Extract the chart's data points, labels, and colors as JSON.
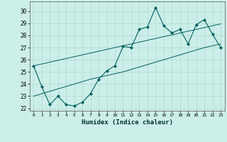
{
  "xlabel": "Humidex (Indice chaleur)",
  "bg_color": "#cceee8",
  "line_color": "#006060",
  "grid_color": "#b0d8d0",
  "x": [
    0,
    1,
    2,
    3,
    4,
    5,
    6,
    7,
    8,
    9,
    10,
    11,
    12,
    13,
    14,
    15,
    16,
    17,
    18,
    19,
    20,
    21,
    22,
    23
  ],
  "y_main": [
    25.5,
    23.8,
    22.3,
    23.0,
    22.3,
    22.2,
    22.5,
    23.2,
    24.4,
    25.1,
    25.5,
    27.1,
    27.0,
    28.5,
    28.7,
    30.3,
    28.8,
    28.2,
    28.5,
    27.3,
    28.9,
    29.3,
    28.1,
    27.0
  ],
  "y_trend1": [
    23.0,
    23.2,
    23.4,
    23.6,
    23.8,
    24.0,
    24.2,
    24.4,
    24.55,
    24.7,
    24.85,
    25.0,
    25.2,
    25.4,
    25.6,
    25.8,
    26.0,
    26.2,
    26.4,
    26.6,
    26.8,
    27.0,
    27.15,
    27.3
  ],
  "y_trend2": [
    25.5,
    25.65,
    25.8,
    25.95,
    26.1,
    26.25,
    26.4,
    26.55,
    26.7,
    26.85,
    27.0,
    27.15,
    27.3,
    27.45,
    27.6,
    27.75,
    27.9,
    28.05,
    28.2,
    28.35,
    28.5,
    28.65,
    28.8,
    28.95
  ],
  "xlim": [
    -0.5,
    23.5
  ],
  "ylim": [
    21.8,
    30.8
  ],
  "yticks": [
    22,
    23,
    24,
    25,
    26,
    27,
    28,
    29,
    30
  ],
  "xticks": [
    0,
    1,
    2,
    3,
    4,
    5,
    6,
    7,
    8,
    9,
    10,
    11,
    12,
    13,
    14,
    15,
    16,
    17,
    18,
    19,
    20,
    21,
    22,
    23
  ]
}
